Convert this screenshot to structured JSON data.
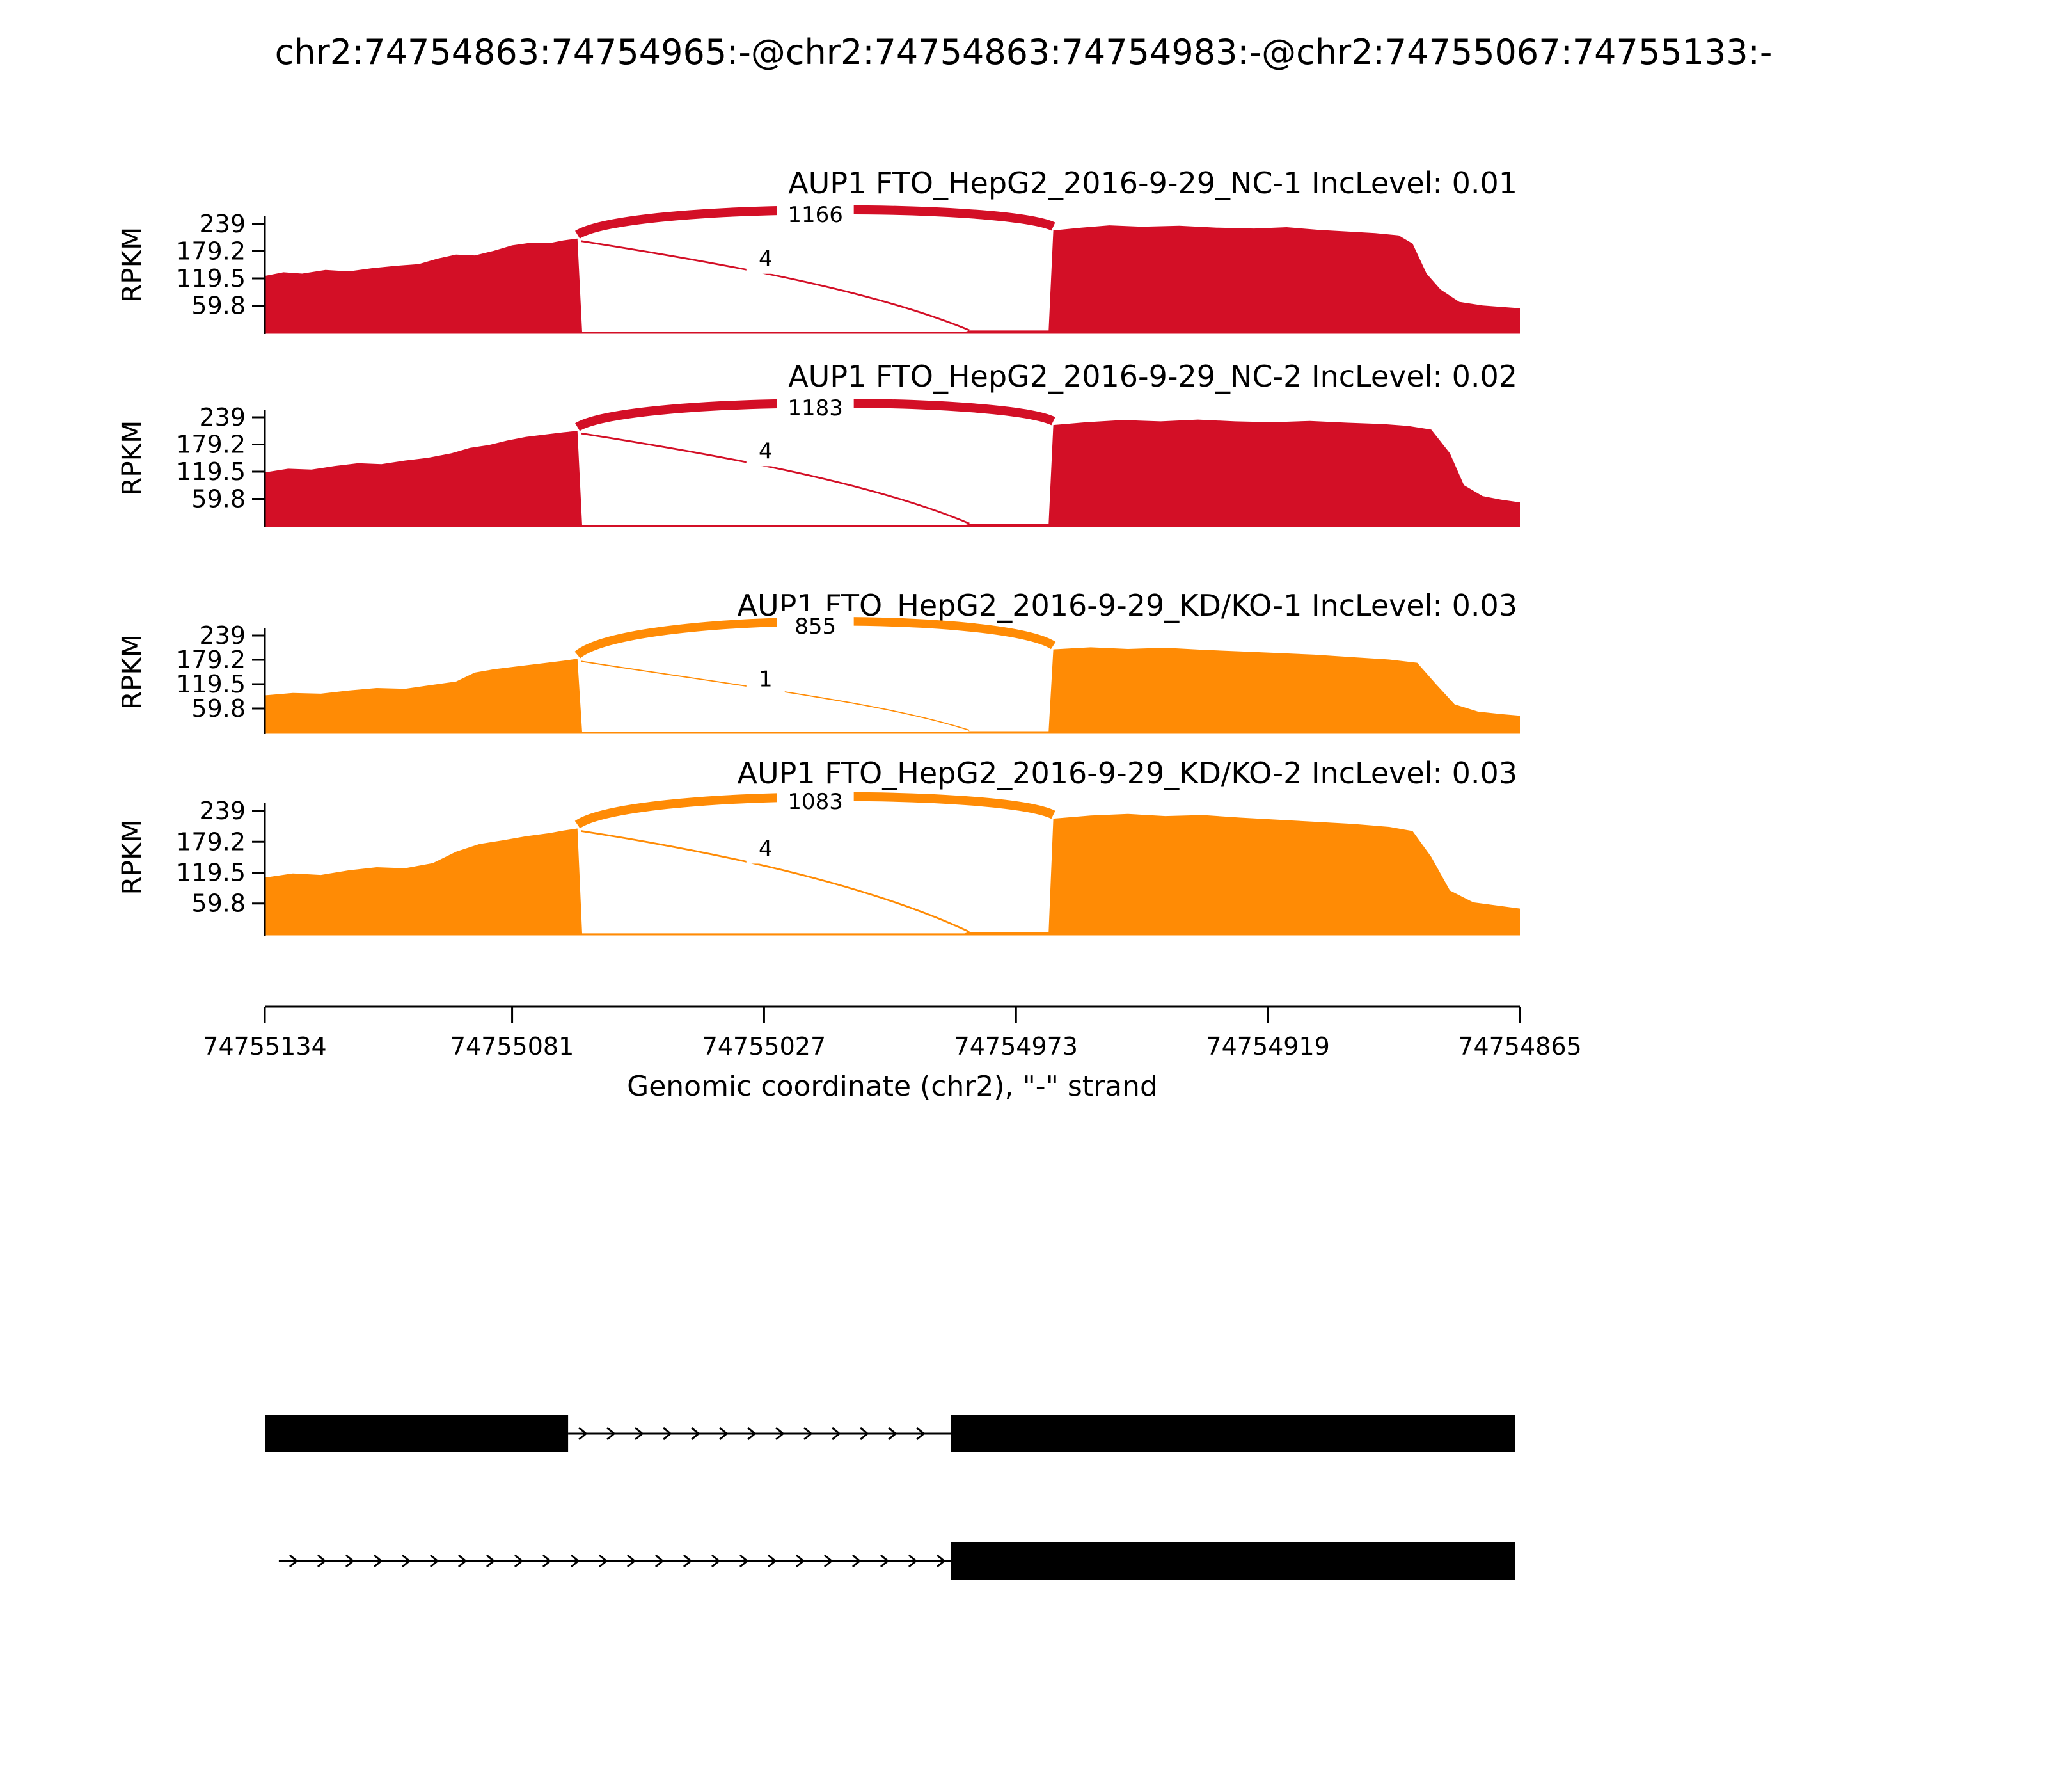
{
  "title": "chr2:74754863:74754965:-@chr2:74754863:74754983:-@chr2:74755067:74755133:-",
  "chart_data": {
    "type": "area",
    "subtype": "sashimi-plot",
    "title": "chr2:74754863:74754965:-@chr2:74754863:74754983:-@chr2:74755067:74755133:-",
    "xlabel": "Genomic coordinate (chr2), \"-\" strand",
    "ylabel": "RPKM",
    "strand": "-",
    "gene": "AUP1",
    "x_axis": {
      "range": [
        74755134,
        74754865
      ],
      "ticks": [
        {
          "value": 74755134,
          "label": "74755134"
        },
        {
          "value": 74755081,
          "label": "74755081"
        },
        {
          "value": 74755027,
          "label": "74755027"
        },
        {
          "value": 74754973,
          "label": "74754973"
        },
        {
          "value": 74754919,
          "label": "74754919"
        },
        {
          "value": 74754865,
          "label": "74754865"
        }
      ]
    },
    "y_axis": {
      "max": 239,
      "ticks": [
        {
          "value": 239,
          "label": "239"
        },
        {
          "value": 179.2,
          "label": "179.2"
        },
        {
          "value": 119.5,
          "label": "119.5"
        },
        {
          "value": 59.8,
          "label": "59.8"
        }
      ]
    },
    "tracks": [
      {
        "label": "AUP1 FTO_HepG2_2016-9-29_NC-1 IncLevel: 0.01",
        "inc_level": "0.01",
        "color": "#d30f26",
        "junctions": [
          {
            "from": 74755067,
            "to": 74754965,
            "count": 1166,
            "style": "arc"
          },
          {
            "from": 74755067,
            "to": 74754983,
            "count": 4,
            "style": "drop"
          }
        ],
        "coverage": [
          [
            74755134,
            125
          ],
          [
            74755130,
            133
          ],
          [
            74755126,
            130
          ],
          [
            74755121,
            138
          ],
          [
            74755116,
            135
          ],
          [
            74755111,
            142
          ],
          [
            74755106,
            147
          ],
          [
            74755101,
            151
          ],
          [
            74755097,
            163
          ],
          [
            74755093,
            172
          ],
          [
            74755089,
            170
          ],
          [
            74755085,
            180
          ],
          [
            74755081,
            192
          ],
          [
            74755077,
            198
          ],
          [
            74755073,
            197
          ],
          [
            74755070,
            203
          ],
          [
            74755067,
            207
          ],
          [
            74755066,
            2
          ],
          [
            74754984,
            2
          ],
          [
            74754983,
            5
          ],
          [
            74754966,
            5
          ],
          [
            74754965,
            225
          ],
          [
            74754959,
            231
          ],
          [
            74754953,
            236
          ],
          [
            74754946,
            233
          ],
          [
            74754938,
            235
          ],
          [
            74754930,
            231
          ],
          [
            74754922,
            229
          ],
          [
            74754915,
            232
          ],
          [
            74754908,
            226
          ],
          [
            74754901,
            222
          ],
          [
            74754896,
            219
          ],
          [
            74754891,
            214
          ],
          [
            74754888,
            196
          ],
          [
            74754885,
            130
          ],
          [
            74754882,
            95
          ],
          [
            74754878,
            68
          ],
          [
            74754873,
            60
          ],
          [
            74754869,
            57
          ],
          [
            74754865,
            54
          ]
        ]
      },
      {
        "label": "AUP1 FTO_HepG2_2016-9-29_NC-2 IncLevel: 0.02",
        "inc_level": "0.02",
        "color": "#d30f26",
        "junctions": [
          {
            "from": 74755067,
            "to": 74754965,
            "count": 1183,
            "style": "arc"
          },
          {
            "from": 74755067,
            "to": 74754983,
            "count": 4,
            "style": "drop"
          }
        ],
        "coverage": [
          [
            74755134,
            118
          ],
          [
            74755129,
            126
          ],
          [
            74755124,
            124
          ],
          [
            74755119,
            132
          ],
          [
            74755114,
            138
          ],
          [
            74755109,
            136
          ],
          [
            74755104,
            144
          ],
          [
            74755099,
            150
          ],
          [
            74755094,
            160
          ],
          [
            74755090,
            172
          ],
          [
            74755086,
            178
          ],
          [
            74755082,
            188
          ],
          [
            74755078,
            196
          ],
          [
            74755074,
            201
          ],
          [
            74755070,
            206
          ],
          [
            74755067,
            209
          ],
          [
            74755066,
            2
          ],
          [
            74754984,
            2
          ],
          [
            74754983,
            5
          ],
          [
            74754966,
            5
          ],
          [
            74754965,
            222
          ],
          [
            74754958,
            228
          ],
          [
            74754950,
            233
          ],
          [
            74754942,
            230
          ],
          [
            74754934,
            234
          ],
          [
            74754926,
            230
          ],
          [
            74754918,
            228
          ],
          [
            74754910,
            231
          ],
          [
            74754902,
            227
          ],
          [
            74754894,
            224
          ],
          [
            74754889,
            220
          ],
          [
            74754884,
            212
          ],
          [
            74754880,
            160
          ],
          [
            74754877,
            90
          ],
          [
            74754873,
            66
          ],
          [
            74754869,
            58
          ],
          [
            74754865,
            52
          ]
        ]
      },
      {
        "label": "AUP1 FTO_HepG2_2016-9-29_KD/KO-1 IncLevel: 0.03",
        "inc_level": "0.03",
        "color": "#ff8b05",
        "junctions": [
          {
            "from": 74755067,
            "to": 74754965,
            "count": 855,
            "style": "arc"
          },
          {
            "from": 74755067,
            "to": 74754983,
            "count": 1,
            "style": "drop"
          }
        ],
        "coverage": [
          [
            74755134,
            92
          ],
          [
            74755128,
            98
          ],
          [
            74755122,
            96
          ],
          [
            74755116,
            104
          ],
          [
            74755110,
            110
          ],
          [
            74755104,
            108
          ],
          [
            74755098,
            118
          ],
          [
            74755093,
            126
          ],
          [
            74755089,
            148
          ],
          [
            74755085,
            156
          ],
          [
            74755080,
            163
          ],
          [
            74755075,
            170
          ],
          [
            74755070,
            177
          ],
          [
            74755067,
            182
          ],
          [
            74755066,
            2
          ],
          [
            74754984,
            2
          ],
          [
            74754983,
            4
          ],
          [
            74754966,
            4
          ],
          [
            74754965,
            205
          ],
          [
            74754957,
            210
          ],
          [
            74754949,
            206
          ],
          [
            74754941,
            209
          ],
          [
            74754933,
            204
          ],
          [
            74754925,
            200
          ],
          [
            74754917,
            196
          ],
          [
            74754909,
            192
          ],
          [
            74754901,
            186
          ],
          [
            74754893,
            180
          ],
          [
            74754887,
            172
          ],
          [
            74754883,
            120
          ],
          [
            74754879,
            70
          ],
          [
            74754874,
            52
          ],
          [
            74754869,
            46
          ],
          [
            74754865,
            42
          ]
        ]
      },
      {
        "label": "AUP1 FTO_HepG2_2016-9-29_KD/KO-2 IncLevel: 0.03",
        "inc_level": "0.03",
        "color": "#ff8b05",
        "junctions": [
          {
            "from": 74755067,
            "to": 74754965,
            "count": 1083,
            "style": "arc"
          },
          {
            "from": 74755067,
            "to": 74754983,
            "count": 4,
            "style": "drop"
          }
        ],
        "coverage": [
          [
            74755134,
            110
          ],
          [
            74755128,
            118
          ],
          [
            74755122,
            115
          ],
          [
            74755116,
            124
          ],
          [
            74755110,
            130
          ],
          [
            74755104,
            128
          ],
          [
            74755098,
            138
          ],
          [
            74755093,
            160
          ],
          [
            74755088,
            175
          ],
          [
            74755083,
            182
          ],
          [
            74755078,
            190
          ],
          [
            74755073,
            196
          ],
          [
            74755070,
            201
          ],
          [
            74755067,
            205
          ],
          [
            74755066,
            2
          ],
          [
            74754984,
            2
          ],
          [
            74754983,
            5
          ],
          [
            74754966,
            5
          ],
          [
            74754965,
            224
          ],
          [
            74754957,
            230
          ],
          [
            74754949,
            233
          ],
          [
            74754941,
            229
          ],
          [
            74754933,
            231
          ],
          [
            74754925,
            226
          ],
          [
            74754917,
            222
          ],
          [
            74754909,
            218
          ],
          [
            74754901,
            214
          ],
          [
            74754893,
            208
          ],
          [
            74754888,
            200
          ],
          [
            74754884,
            150
          ],
          [
            74754880,
            85
          ],
          [
            74754875,
            62
          ],
          [
            74754870,
            56
          ],
          [
            74754865,
            50
          ]
        ]
      }
    ],
    "isoforms": [
      {
        "segments": [
          {
            "type": "exon",
            "start": 74755134,
            "end": 74755069
          },
          {
            "type": "intron",
            "start": 74755069,
            "end": 74754987
          },
          {
            "type": "exon",
            "start": 74754987,
            "end": 74754866
          }
        ]
      },
      {
        "segments": [
          {
            "type": "intron",
            "start": 74755131,
            "end": 74754987
          },
          {
            "type": "exon",
            "start": 74754987,
            "end": 74754866
          }
        ]
      }
    ]
  }
}
